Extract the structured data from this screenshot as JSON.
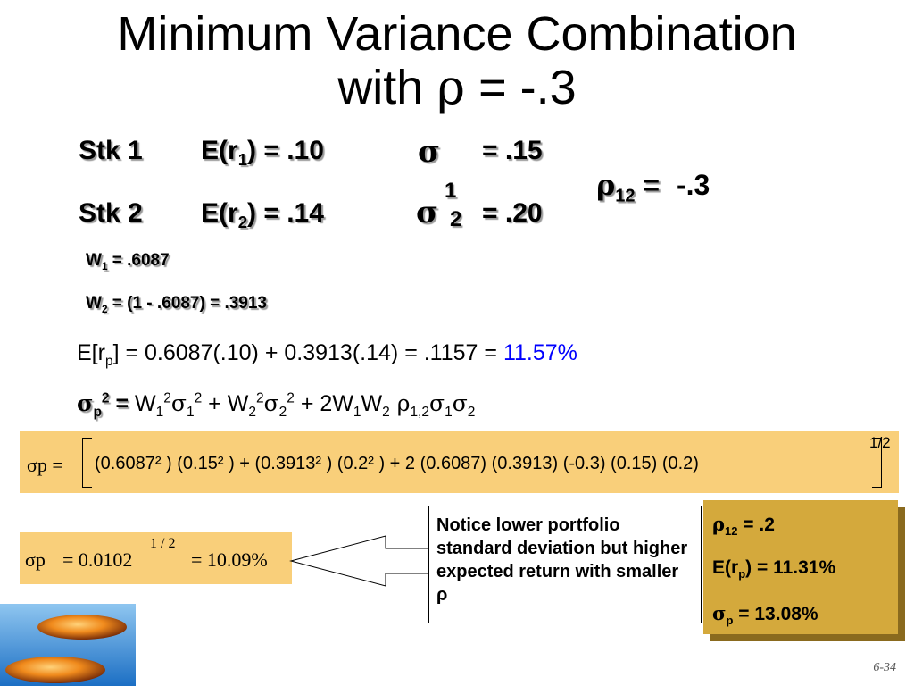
{
  "title": {
    "line1": "Minimum Variance Combination",
    "line2_pre": "with ",
    "rho": "ρ",
    "line2_post": " = -.3"
  },
  "stocks": [
    {
      "label": "Stk 1",
      "er_pre": "E(r",
      "er_sub": "1",
      "er_post": ") = .10",
      "sigma": "σ",
      "sigma_sub": "1",
      "sd": "= .15"
    },
    {
      "label": "Stk 2",
      "er_pre": "E(r",
      "er_sub": "2",
      "er_post": ") = .14",
      "sigma": "σ",
      "sigma_sub": "2",
      "sd": "= .20"
    }
  ],
  "rho12": {
    "symbol": "ρ",
    "sub": "12",
    "eq": " = ",
    "value": "-.3"
  },
  "weights": {
    "w1_label": "W",
    "w1_sub": "1",
    "w1_value": " = .6087",
    "w2_label": "W",
    "w2_sub": "2",
    "w2_value": " = (1 - .6087) = .3913"
  },
  "expected_return": {
    "pre": "E[r",
    "sub": "p",
    "post": "] = 0.6087(.10) + 0.3913(.14) = .1157 = ",
    "highlight": "11.57%",
    "highlight_color": "#0000ff"
  },
  "variance_eq": {
    "lhs_sigma": "σ",
    "lhs_sub": "p",
    "lhs_sup": "2",
    "lhs_eq": " = ",
    "t1": "W",
    "t1_sub": "1",
    "t1_sup": "2",
    "t2": "σ",
    "t2_sub": "1",
    "t2_sup": "2",
    "plus1": " + ",
    "t3": "W",
    "t3_sub": "2",
    "t3_sup": "2",
    "t4": "σ",
    "t4_sub": "2",
    "t4_sup": "2",
    "plus2": " + 2",
    "t5": "W",
    "t5_sub": "1",
    "t6": "W",
    "t6_sub": "2",
    "t7": " ρ",
    "t7_sub": "1,2",
    "t8": "σ",
    "t8_sub": "1",
    "t9": "σ",
    "t9_sub": "2"
  },
  "formula": {
    "lhs": "σp =",
    "body": "(0.6087² ) (0.15² )  +  (0.3913² ) (0.2² )  +  2 (0.6087) (0.3913) (-0.3) (0.15) (0.2)",
    "exponent": "1/2",
    "box_color": "#f9cf7a"
  },
  "result": {
    "lhs": "σp",
    "expr_pre": "= 0.0102",
    "exp": "1 / 2",
    "expr_post": "= 10.09%"
  },
  "callout": {
    "text": "Notice lower portfolio standard deviation but higher expected return with smaller ρ"
  },
  "comparison": {
    "rho_label": "ρ",
    "rho_sub": "12",
    "rho_value": " = .2",
    "er_pre": "E(r",
    "er_sub": "p",
    "er_value": ") = 11.31%",
    "sd_label": "σ",
    "sd_sub": "p",
    "sd_value": " = 13.08%",
    "bg_color": "#d4a93c"
  },
  "page_number": "6-34"
}
